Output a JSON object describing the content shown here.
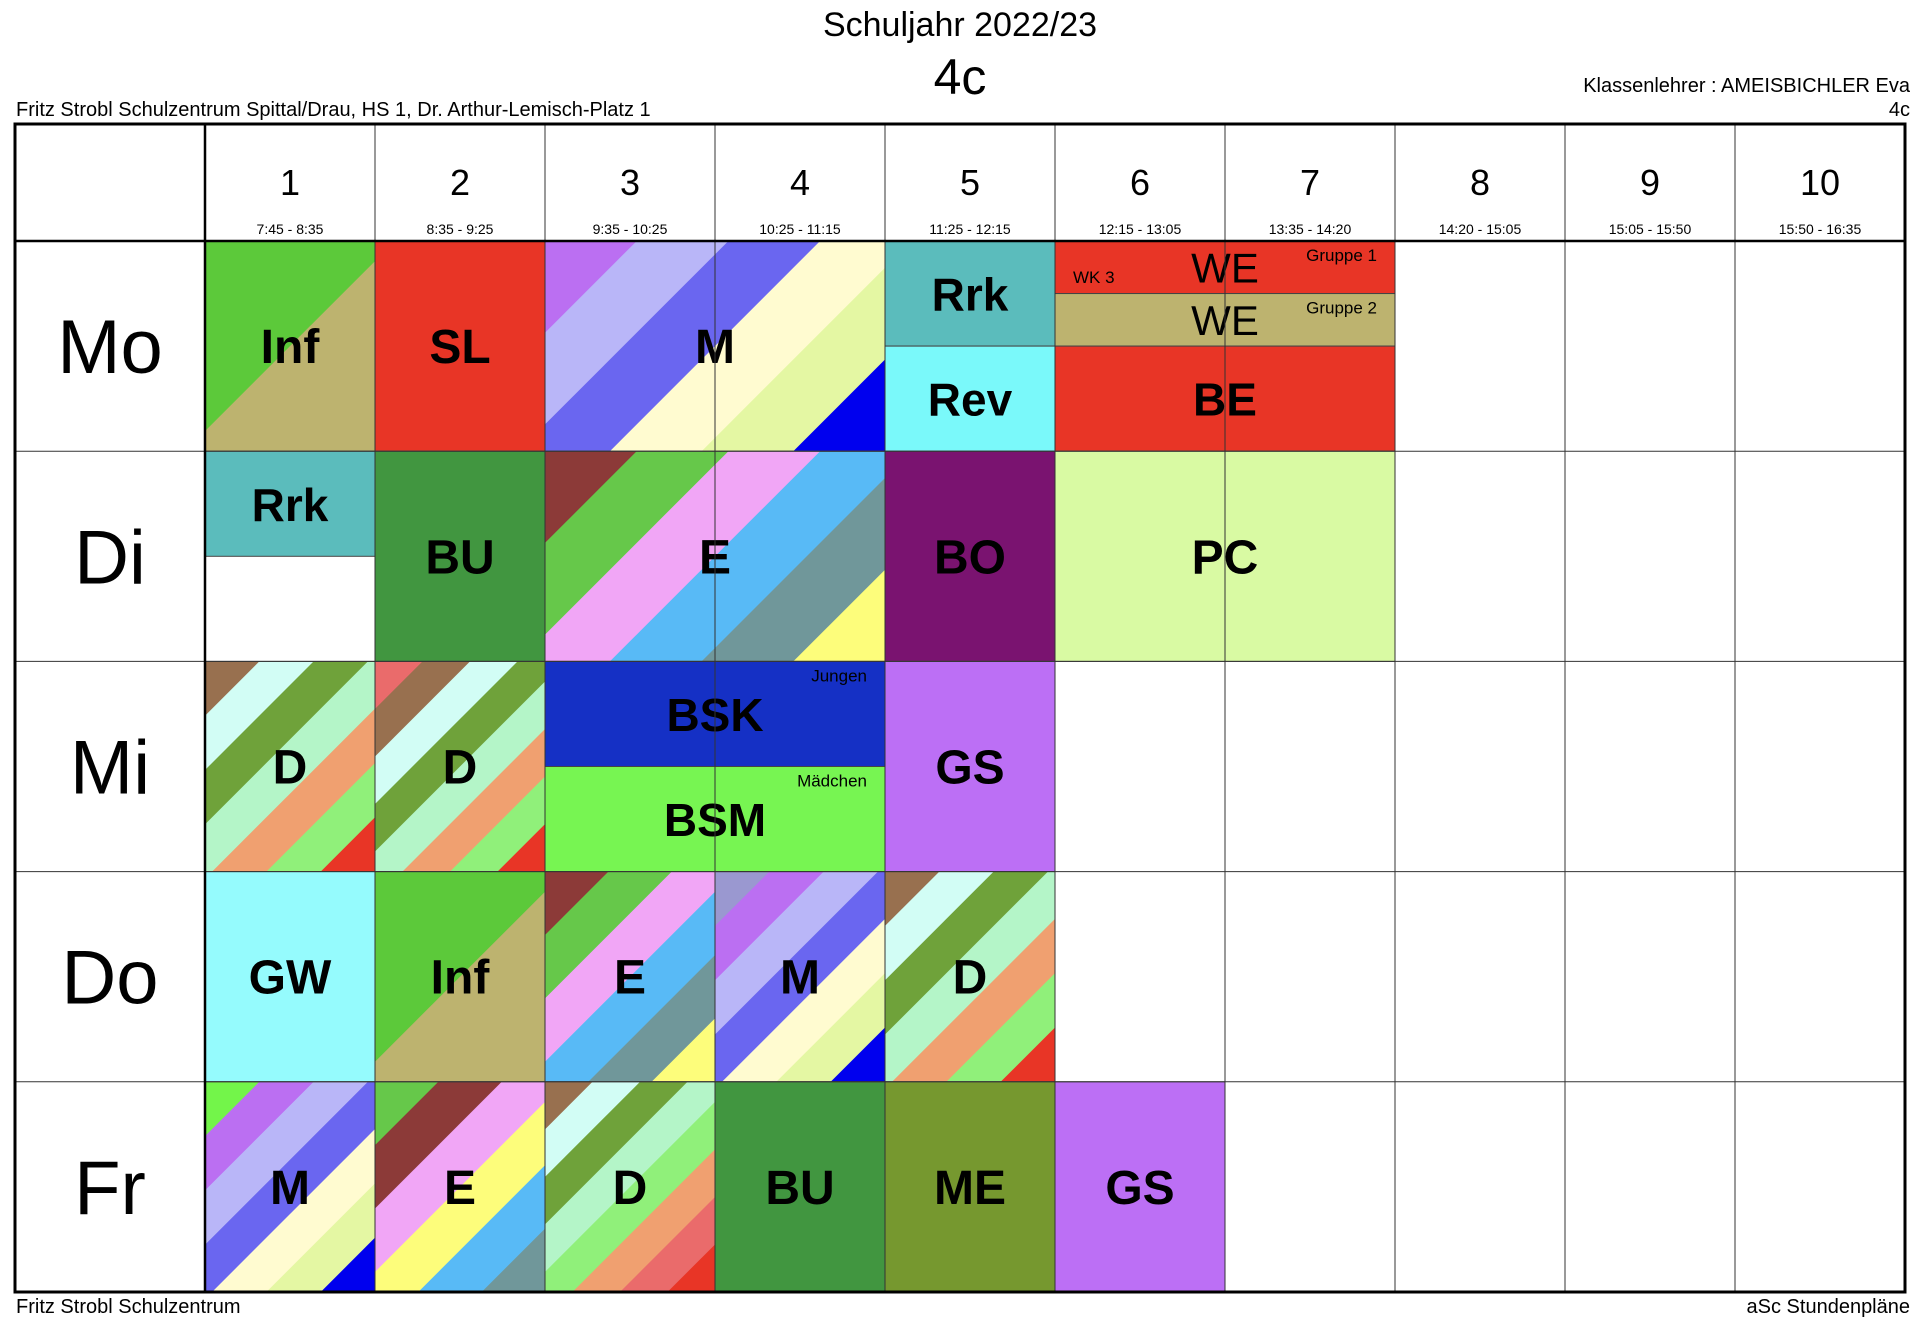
{
  "header": {
    "title": "Schuljahr 2022/23",
    "class_name": "4c",
    "school_line": "Fritz Strobl Schulzentrum Spittal/Drau, HS 1, Dr. Arthur-Lemisch-Platz 1",
    "teacher_line": "Klassenlehrer : AMEISBICHLER Eva",
    "class_repeat": "4c"
  },
  "footer": {
    "left": "Fritz Strobl Schulzentrum",
    "right": "aSc Stundenpläne"
  },
  "periods": [
    {
      "num": "1",
      "time": "7:45 - 8:35"
    },
    {
      "num": "2",
      "time": "8:35 - 9:25"
    },
    {
      "num": "3",
      "time": "9:35 - 10:25"
    },
    {
      "num": "4",
      "time": "10:25 - 11:15"
    },
    {
      "num": "5",
      "time": "11:25 - 12:15"
    },
    {
      "num": "6",
      "time": "12:15 - 13:05"
    },
    {
      "num": "7",
      "time": "13:35 - 14:20"
    },
    {
      "num": "8",
      "time": "14:20 - 15:05"
    },
    {
      "num": "9",
      "time": "15:05 - 15:50"
    },
    {
      "num": "10",
      "time": "15:50 - 16:35"
    }
  ],
  "days": [
    "Mo",
    "Di",
    "Mi",
    "Do",
    "Fr"
  ],
  "palettes": {
    "inf": [
      "#bdb36f",
      "#5cc93a"
    ],
    "sl": [
      "#e83526"
    ],
    "m": [
      "#0000ee",
      "#e4f7a3",
      "#fffbd0",
      "#6a66f0",
      "#b9b6f8",
      "#bb6ff2"
    ],
    "m_fr": [
      "#0000ee",
      "#e4f7a3",
      "#fffbd0",
      "#6a66f0",
      "#b9b6f8",
      "#bb6ff2",
      "#73f54a"
    ],
    "m_do": [
      "#0000ee",
      "#e4f7a3",
      "#fffbd0",
      "#6a66f0",
      "#b9b6f8",
      "#bb6ff2",
      "#9a98d0"
    ],
    "rrk": [
      "#5bbcbc"
    ],
    "rev": [
      "#7af9fa"
    ],
    "we1": [
      "#e83526"
    ],
    "we2": [
      "#bdb36f"
    ],
    "be": [
      "#e83526"
    ],
    "bu": [
      "#419640"
    ],
    "e": [
      "#fdfd7b",
      "#70979a",
      "#58baf6",
      "#f1a6f6",
      "#66c84a",
      "#8c3a38"
    ],
    "e_fr": [
      "#70979a",
      "#58baf6",
      "#fdfd7b",
      "#f1a6f6",
      "#8c3a38",
      "#66c84a"
    ],
    "bo": [
      "#7a1370"
    ],
    "pc": [
      "#d9faa3"
    ],
    "d": [
      "#e83526",
      "#90f07a",
      "#f0a070",
      "#b4f5c8",
      "#6fa23a",
      "#d2fdf5",
      "#98704f"
    ],
    "d2": [
      "#e83526",
      "#90f07a",
      "#f0a070",
      "#b4f5c8",
      "#6fa23a",
      "#d2fdf5",
      "#98704f",
      "#ea6b6b"
    ],
    "d_fr": [
      "#e83526",
      "#ea6b6b",
      "#f0a070",
      "#90f07a",
      "#b4f5c8",
      "#6fa23a",
      "#d2fdf5",
      "#98704f"
    ],
    "bsk": [
      "#1530c5"
    ],
    "bsm": [
      "#77f552"
    ],
    "gs": [
      "#bc6ff5"
    ],
    "gw": [
      "#95fbfd"
    ],
    "me": [
      "#76982f"
    ]
  },
  "lessons": [
    {
      "day": 0,
      "p": 0,
      "span": 1,
      "r0": 0,
      "r1": 1,
      "label": "Inf",
      "pal": "inf",
      "diag": true
    },
    {
      "day": 0,
      "p": 1,
      "span": 1,
      "r0": 0,
      "r1": 1,
      "label": "SL",
      "pal": "sl"
    },
    {
      "day": 0,
      "p": 2,
      "span": 2,
      "r0": 0,
      "r1": 1,
      "label": "M",
      "pal": "m",
      "diag": true
    },
    {
      "day": 0,
      "p": 4,
      "span": 1,
      "r0": 0,
      "r1": 0.5,
      "label": "Rrk",
      "pal": "rrk"
    },
    {
      "day": 0,
      "p": 4,
      "span": 1,
      "r0": 0.5,
      "r1": 1,
      "label": "Rev",
      "pal": "rev"
    },
    {
      "day": 0,
      "p": 5,
      "span": 2,
      "r0": 0,
      "r1": 0.25,
      "label": "WE",
      "pal": "we1",
      "small": true,
      "corner": "Gruppe 1",
      "left": "WK 3"
    },
    {
      "day": 0,
      "p": 5,
      "span": 2,
      "r0": 0.25,
      "r1": 0.5,
      "label": "WE",
      "pal": "we2",
      "small": true,
      "corner": "Gruppe 2"
    },
    {
      "day": 0,
      "p": 5,
      "span": 2,
      "r0": 0.5,
      "r1": 1,
      "label": "BE",
      "pal": "be"
    },
    {
      "day": 1,
      "p": 0,
      "span": 1,
      "r0": 0,
      "r1": 0.5,
      "label": "Rrk",
      "pal": "rrk"
    },
    {
      "day": 1,
      "p": 1,
      "span": 1,
      "r0": 0,
      "r1": 1,
      "label": "BU",
      "pal": "bu"
    },
    {
      "day": 1,
      "p": 2,
      "span": 2,
      "r0": 0,
      "r1": 1,
      "label": "E",
      "pal": "e",
      "diag": true
    },
    {
      "day": 1,
      "p": 4,
      "span": 1,
      "r0": 0,
      "r1": 1,
      "label": "BO",
      "pal": "bo"
    },
    {
      "day": 1,
      "p": 5,
      "span": 2,
      "r0": 0,
      "r1": 1,
      "label": "PC",
      "pal": "pc"
    },
    {
      "day": 2,
      "p": 0,
      "span": 1,
      "r0": 0,
      "r1": 1,
      "label": "D",
      "pal": "d",
      "diag": true
    },
    {
      "day": 2,
      "p": 1,
      "span": 1,
      "r0": 0,
      "r1": 1,
      "label": "D",
      "pal": "d2",
      "diag": true
    },
    {
      "day": 2,
      "p": 2,
      "span": 2,
      "r0": 0,
      "r1": 0.5,
      "label": "BSK",
      "pal": "bsk",
      "corner": "Jungen"
    },
    {
      "day": 2,
      "p": 2,
      "span": 2,
      "r0": 0.5,
      "r1": 1,
      "label": "BSM",
      "pal": "bsm",
      "corner": "Mädchen"
    },
    {
      "day": 2,
      "p": 4,
      "span": 1,
      "r0": 0,
      "r1": 1,
      "label": "GS",
      "pal": "gs"
    },
    {
      "day": 3,
      "p": 0,
      "span": 1,
      "r0": 0,
      "r1": 1,
      "label": "GW",
      "pal": "gw"
    },
    {
      "day": 3,
      "p": 1,
      "span": 1,
      "r0": 0,
      "r1": 1,
      "label": "Inf",
      "pal": "inf",
      "diag": true
    },
    {
      "day": 3,
      "p": 2,
      "span": 1,
      "r0": 0,
      "r1": 1,
      "label": "E",
      "pal": "e",
      "diag": true
    },
    {
      "day": 3,
      "p": 3,
      "span": 1,
      "r0": 0,
      "r1": 1,
      "label": "M",
      "pal": "m_do",
      "diag": true
    },
    {
      "day": 3,
      "p": 4,
      "span": 1,
      "r0": 0,
      "r1": 1,
      "label": "D",
      "pal": "d",
      "diag": true
    },
    {
      "day": 4,
      "p": 0,
      "span": 1,
      "r0": 0,
      "r1": 1,
      "label": "M",
      "pal": "m_fr",
      "diag": true
    },
    {
      "day": 4,
      "p": 1,
      "span": 1,
      "r0": 0,
      "r1": 1,
      "label": "E",
      "pal": "e_fr",
      "diag": true
    },
    {
      "day": 4,
      "p": 2,
      "span": 1,
      "r0": 0,
      "r1": 1,
      "label": "D",
      "pal": "d_fr",
      "diag": true
    },
    {
      "day": 4,
      "p": 3,
      "span": 1,
      "r0": 0,
      "r1": 1,
      "label": "BU",
      "pal": "bu"
    },
    {
      "day": 4,
      "p": 4,
      "span": 1,
      "r0": 0,
      "r1": 1,
      "label": "ME",
      "pal": "me"
    },
    {
      "day": 4,
      "p": 5,
      "span": 1,
      "r0": 0,
      "r1": 1,
      "label": "GS",
      "pal": "gs"
    }
  ]
}
